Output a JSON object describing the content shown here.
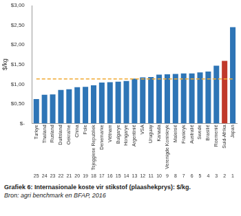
{
  "chart_data": {
    "type": "bar",
    "title": "Grafiek 6: Internasionale koste vir stikstof (plaashekprys): $/kg.",
    "source": "Bron: agri benchmark en BFAP, 2016",
    "y_label": "$/kg",
    "categories": [
      "Turkye",
      "Thailand",
      "Rusland",
      "Duitsland",
      "Oekraïne",
      "China",
      "Pole",
      "Tsjeggiese Republiek",
      "Denemarke",
      "Viëtnam",
      "Bulgarye",
      "Hongarye",
      "Argentinië",
      "VSA",
      "Uruguay",
      "Kanada",
      "Verenigde Koninkryk",
      "Maleisië",
      "Frankryk",
      "Australië",
      "Swede",
      "Brasilië",
      "Roemenië",
      "Suid-Afrika",
      "Japan"
    ],
    "ranks": [
      25,
      24,
      23,
      22,
      21,
      20,
      19,
      18,
      17,
      16,
      15,
      14,
      13,
      12,
      11,
      10,
      9,
      8,
      7,
      6,
      5,
      4,
      3,
      2,
      1
    ],
    "values": [
      0.62,
      0.73,
      0.74,
      0.85,
      0.87,
      0.92,
      0.93,
      0.97,
      1.04,
      1.05,
      1.06,
      1.08,
      1.14,
      1.17,
      1.18,
      1.24,
      1.25,
      1.26,
      1.27,
      1.27,
      1.3,
      1.32,
      1.47,
      1.59,
      2.45
    ],
    "colors": [
      "#2e75b6",
      "#2e75b6",
      "#2e75b6",
      "#2e75b6",
      "#2e75b6",
      "#2e75b6",
      "#2e75b6",
      "#2e75b6",
      "#2e75b6",
      "#2e75b6",
      "#2e75b6",
      "#2e75b6",
      "#2e75b6",
      "#2e75b6",
      "#2e75b6",
      "#2e75b6",
      "#2e75b6",
      "#2e75b6",
      "#2e75b6",
      "#2e75b6",
      "#2e75b6",
      "#2e75b6",
      "#2e75b6",
      "#c0392b",
      "#2e75b6"
    ],
    "average_line": 1.13,
    "average_line_color": "#f0a830",
    "ylim": [
      0,
      3
    ],
    "yticks": [
      {
        "value": 0,
        "label": "$-"
      },
      {
        "value": 0.5,
        "label": "$0,50"
      },
      {
        "value": 1,
        "label": "$1,00"
      },
      {
        "value": 1.5,
        "label": "$1,50"
      },
      {
        "value": 2,
        "label": "$2,00"
      },
      {
        "value": 2.5,
        "label": "$2,50"
      },
      {
        "value": 3,
        "label": "$3,00"
      }
    ],
    "grid": false
  }
}
